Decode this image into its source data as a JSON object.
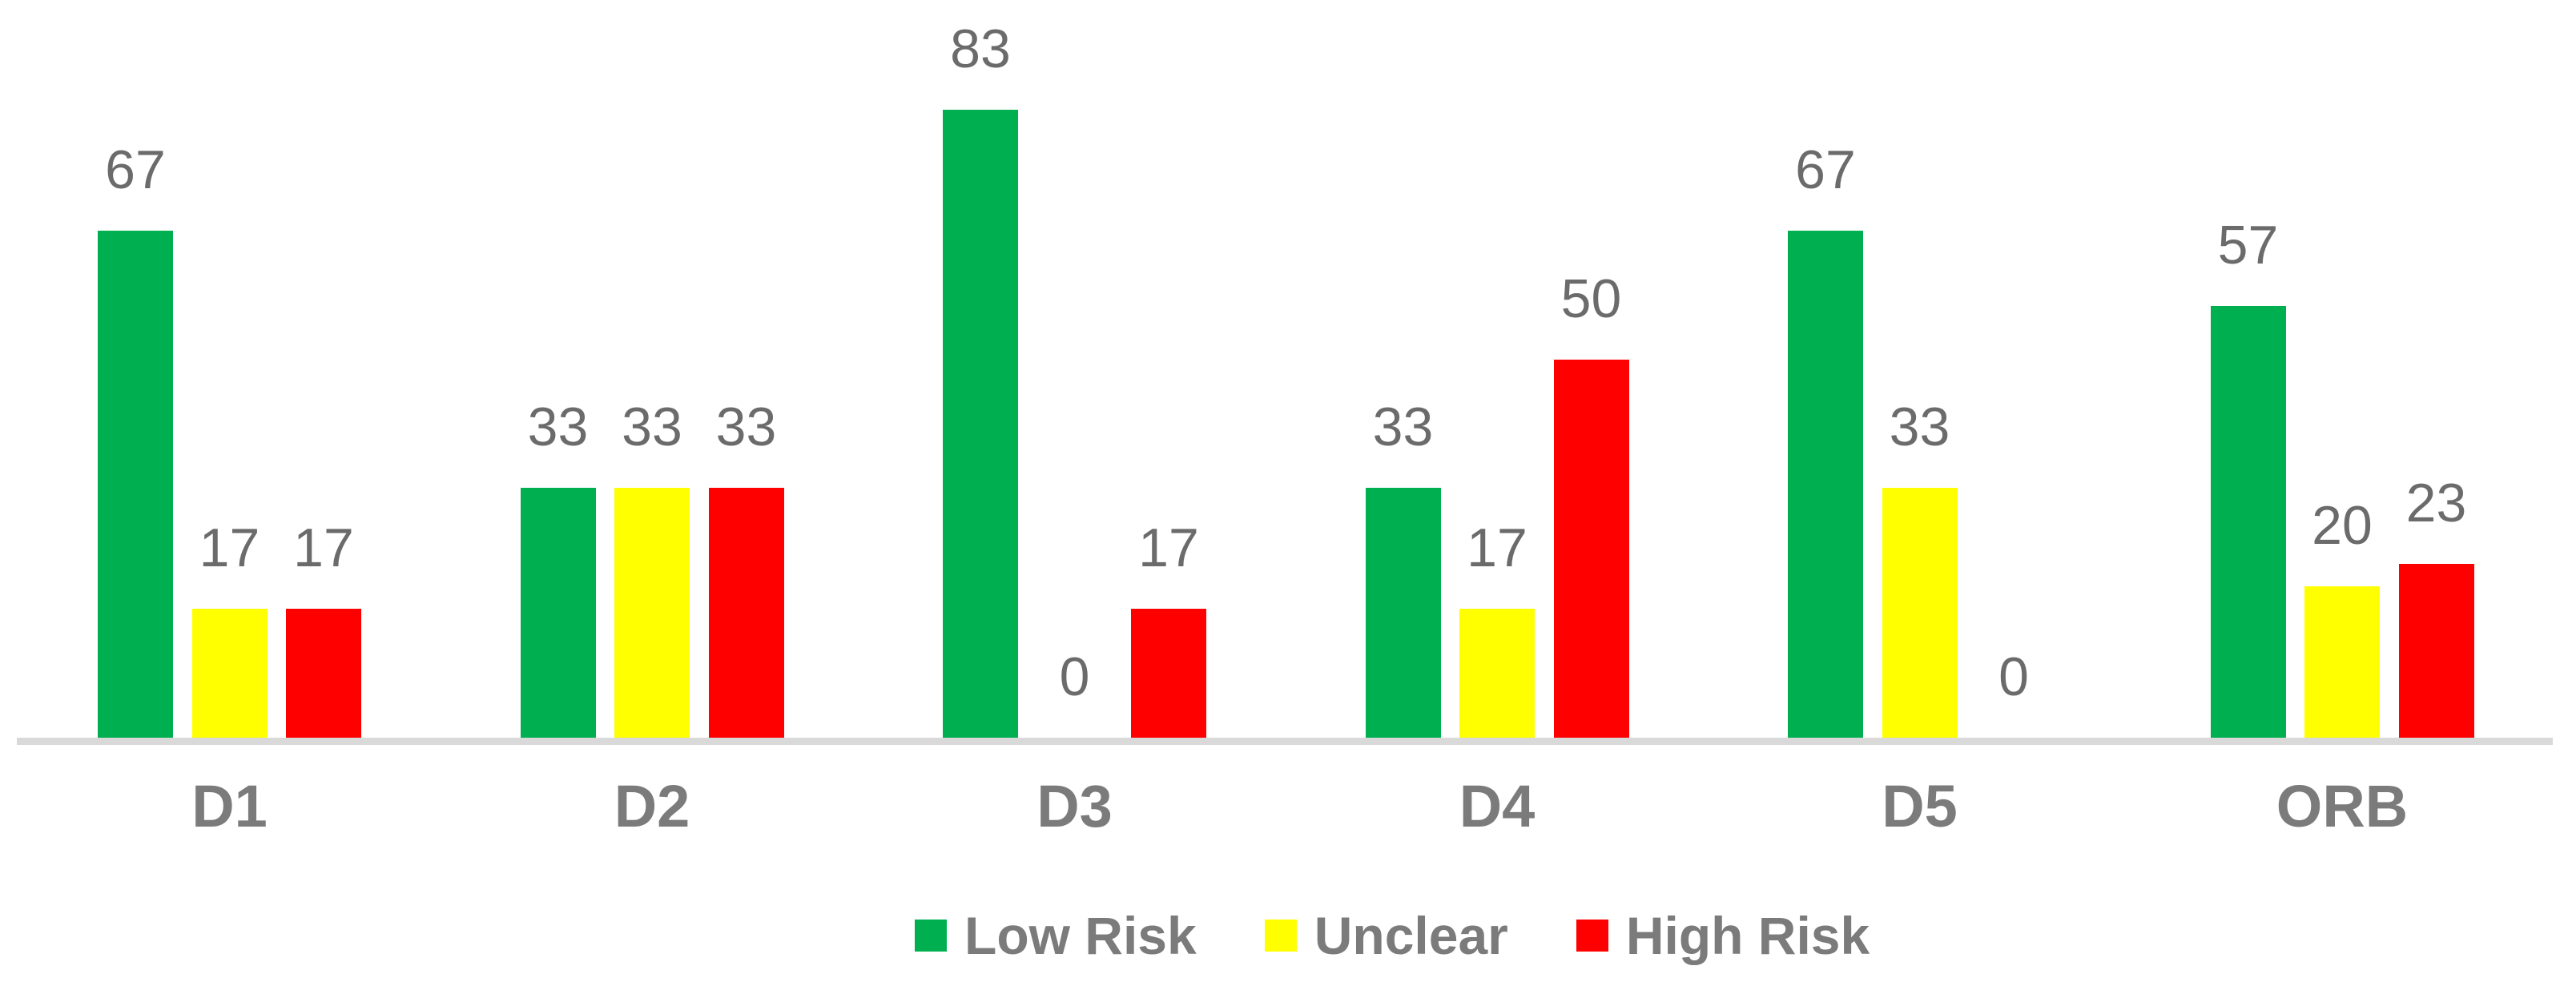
{
  "chart_data": {
    "type": "bar",
    "categories": [
      "D1",
      "D2",
      "D3",
      "D4",
      "D5",
      "ORB"
    ],
    "series": [
      {
        "name": "Low Risk",
        "color": "#00B050",
        "values": [
          67,
          33,
          83,
          33,
          67,
          57
        ]
      },
      {
        "name": "Unclear",
        "color": "#FFFF00",
        "values": [
          17,
          33,
          0,
          17,
          33,
          20
        ]
      },
      {
        "name": "High Risk",
        "color": "#FF0000",
        "values": [
          17,
          33,
          17,
          50,
          0,
          23
        ]
      }
    ],
    "title": "",
    "xlabel": "",
    "ylabel": "",
    "ylim": [
      0,
      100
    ],
    "grid": false,
    "data_labels": true,
    "legend_position": "bottom"
  },
  "legend": {
    "items": [
      {
        "label": "Low Risk",
        "color": "#00B050"
      },
      {
        "label": "Unclear",
        "color": "#FFFF00"
      },
      {
        "label": "High Risk",
        "color": "#FF0000"
      }
    ]
  },
  "colors": {
    "background": "#FFFFFF",
    "axis_line": "#D9D9D9",
    "data_label_text": "#6B6B6B",
    "category_label_text": "#7B7B7B",
    "legend_text": "#7B7B7B"
  }
}
